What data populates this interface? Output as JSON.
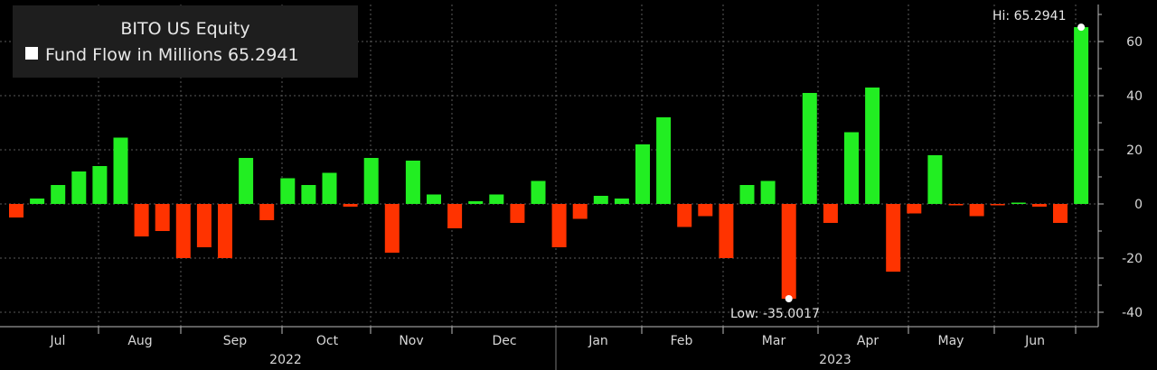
{
  "colors": {
    "background": "#000000",
    "up_bar": "#22ee22",
    "down_bar": "#ff3300",
    "grid": "#5a5a5a",
    "axis": "#bbbbbb",
    "text": "#d8d8d8",
    "legend_box": "#202020",
    "marker": "#ffffff"
  },
  "legend": {
    "title": "BITO US Equity",
    "series_label": "Fund Flow in Millions 65.2941",
    "position": "top-left"
  },
  "annotations": {
    "hi_label": "Hi: 65.2941",
    "low_label": "Low: -35.0017"
  },
  "chart_data": {
    "type": "bar",
    "title": "BITO US Equity",
    "series": [
      {
        "name": "Fund Flow in Millions",
        "values": [
          -5,
          2,
          7,
          12,
          14,
          24.5,
          -12,
          -10,
          -20,
          -16,
          -20,
          17,
          -6,
          9.5,
          7,
          11.5,
          -1,
          17,
          -18,
          16,
          3.5,
          -9,
          1,
          3.5,
          -7,
          8.5,
          -16,
          -5.5,
          3,
          2,
          22,
          32,
          -8.5,
          -4.5,
          -20,
          7,
          8.5,
          -35.0017,
          41,
          -7,
          26.5,
          43,
          -25,
          -3.5,
          18,
          -0.5,
          -4.5,
          -0.5,
          0.5,
          -1,
          -7,
          65.2941
        ]
      }
    ],
    "grid": true,
    "ylim": [
      -44,
      70
    ],
    "y_ticks": [
      "60",
      "40",
      "20",
      "0",
      "-20",
      "-40"
    ],
    "x_month_labels": [
      "Jul",
      "Aug",
      "Sep",
      "Oct",
      "Nov",
      "Dec",
      "Jan",
      "Feb",
      "Mar",
      "Apr",
      "May",
      "Jun"
    ],
    "x_year_labels": [
      "2022",
      "2023"
    ],
    "high": 65.2941,
    "low": -35.0017
  }
}
